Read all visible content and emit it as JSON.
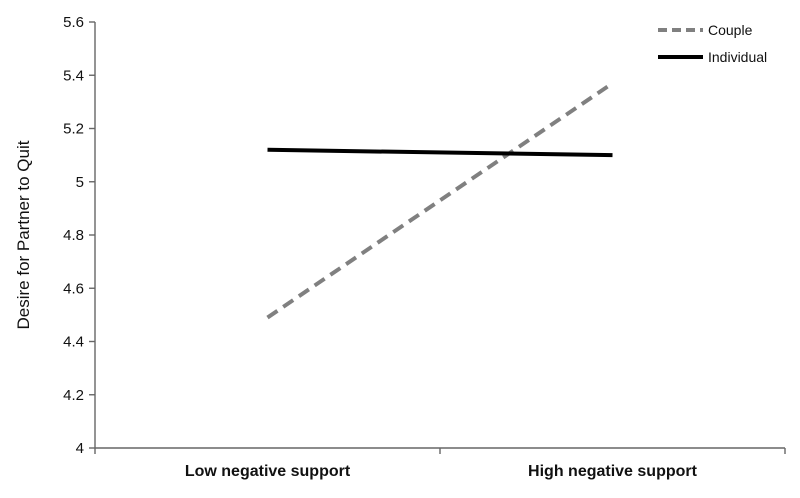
{
  "chart_data": {
    "type": "line",
    "categories": [
      "Low negative support",
      "High negative support"
    ],
    "series": [
      {
        "name": "Couple",
        "values": [
          4.49,
          5.37
        ],
        "style": "dashed",
        "color": "#808080"
      },
      {
        "name": "Individual",
        "values": [
          5.12,
          5.1
        ],
        "style": "solid",
        "color": "#000000"
      }
    ],
    "ylabel": "Desire for Partner to Quit",
    "xlabel": "",
    "ylim": [
      4,
      5.6
    ],
    "yticks": [
      "4",
      "4.2",
      "4.4",
      "4.6",
      "4.8",
      "5",
      "5.2",
      "5.4",
      "5.6"
    ],
    "grid": false,
    "legend_position": "top-right"
  }
}
